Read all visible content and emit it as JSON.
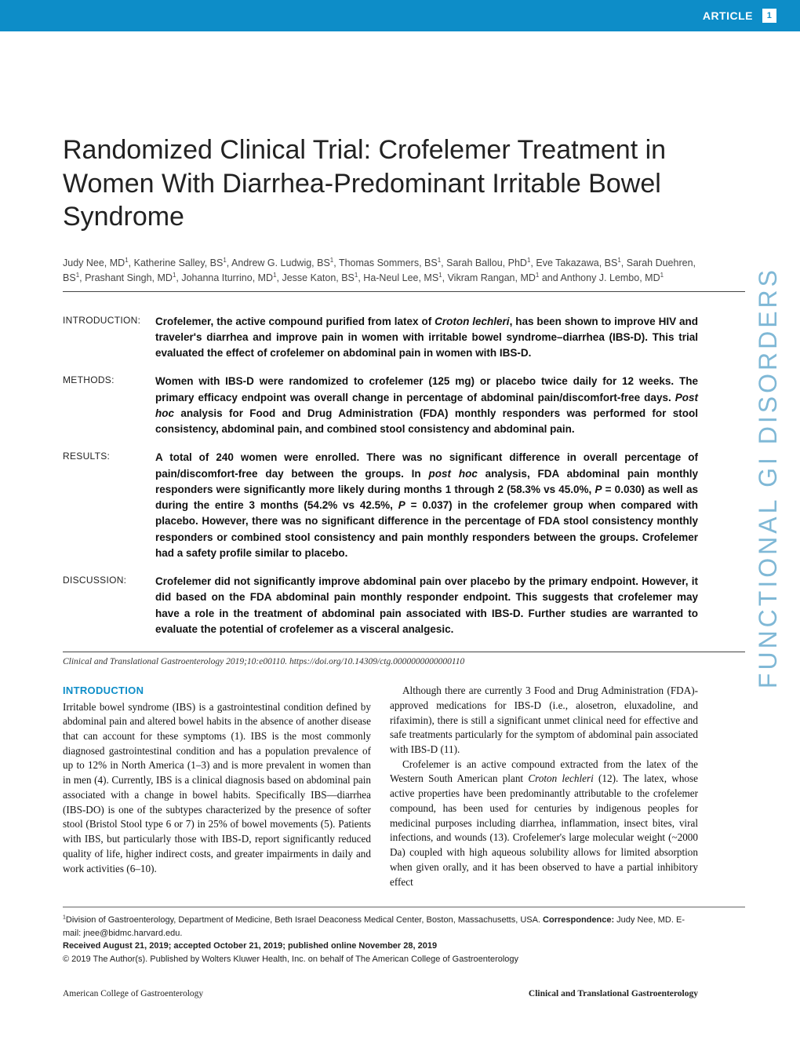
{
  "header": {
    "label": "ARTICLE",
    "page_number": "1",
    "bar_color": "#0d8dc8"
  },
  "side_label": "FUNCTIONAL GI DISORDERS",
  "title": "Randomized Clinical Trial: Crofelemer Treatment in Women With Diarrhea-Predominant Irritable Bowel Syndrome",
  "authors_html": "Judy Nee, MD<sup>1</sup>, Katherine Salley, BS<sup>1</sup>, Andrew G. Ludwig, BS<sup>1</sup>, Thomas Sommers, BS<sup>1</sup>, Sarah Ballou, PhD<sup>1</sup>, Eve Takazawa, BS<sup>1</sup>, Sarah Duehren, BS<sup>1</sup>, Prashant Singh, MD<sup>1</sup>, Johanna Iturrino, MD<sup>1</sup>, Jesse Katon, BS<sup>1</sup>, Ha-Neul Lee, MS<sup>1</sup>, Vikram Rangan, MD<sup>1</sup> and Anthony J. Lembo, MD<sup>1</sup>",
  "abstract": [
    {
      "label": "INTRODUCTION:",
      "text_html": "Crofelemer, the active compound purified from latex of <i>Croton lechleri</i>, has been shown to improve HIV and traveler's diarrhea and improve pain in women with irritable bowel syndrome–diarrhea (IBS-D). This trial evaluated the effect of crofelemer on abdominal pain in women with IBS-D."
    },
    {
      "label": "METHODS:",
      "text_html": "Women with IBS-D were randomized to crofelemer (125 mg) or placebo twice daily for 12 weeks. The primary efficacy endpoint was overall change in percentage of abdominal pain/discomfort-free days. <i>Post hoc</i> analysis for Food and Drug Administration (FDA) monthly responders was performed for stool consistency, abdominal pain, and combined stool consistency and abdominal pain."
    },
    {
      "label": "RESULTS:",
      "text_html": "A total of 240 women were enrolled. There was no significant difference in overall percentage of pain/discomfort-free day between the groups. In <i>post hoc</i> analysis, FDA abdominal pain monthly responders were significantly more likely during months 1 through 2 (58.3% vs 45.0%, <i>P</i> = 0.030) as well as during the entire 3 months (54.2% vs 42.5%, <i>P</i> = 0.037) in the crofelemer group when compared with placebo. However, there was no significant difference in the percentage of FDA stool consistency monthly responders or combined stool consistency and pain monthly responders between the groups. Crofelemer had a safety profile similar to placebo."
    },
    {
      "label": "DISCUSSION:",
      "text_html": "Crofelemer did not significantly improve abdominal pain over placebo by the primary endpoint. However, it did based on the FDA abdominal pain monthly responder endpoint. This suggests that crofelemer may have a role in the treatment of abdominal pain associated with IBS-D. Further studies are warranted to evaluate the potential of crofelemer as a visceral analgesic."
    }
  ],
  "citation": "Clinical and Translational Gastroenterology 2019;10:e00110. https://doi.org/10.14309/ctg.0000000000000110",
  "body": {
    "heading": "INTRODUCTION",
    "p1_html": "Irritable bowel syndrome (IBS) is a gastrointestinal condition defined by abdominal pain and altered bowel habits in the absence of another disease that can account for these symptoms (1). IBS is the most commonly diagnosed gastrointestinal condition and has a population prevalence of up to 12% in North America (1–3) and is more prevalent in women than in men (4). Currently, IBS is a clinical diagnosis based on abdominal pain associated with a change in bowel habits. Specifically IBS—diarrhea (IBS-DO) is one of the subtypes characterized by the presence of softer stool (Bristol Stool type 6 or 7) in 25% of bowel movements (5). Patients with IBS, but particularly those with IBS-D, report significantly reduced quality of life, higher indirect costs, and greater impairments in daily and work activities (6–10).",
    "p2_html": "Although there are currently 3 Food and Drug Administration (FDA)-approved medications for IBS-D (i.e., alosetron, eluxadoline, and rifaximin), there is still a significant unmet clinical need for effective and safe treatments particularly for the symptom of abdominal pain associated with IBS-D (11).",
    "p3_html": "Crofelemer is an active compound extracted from the latex of the Western South American plant <em>Croton lechleri</em> (12). The latex, whose active properties have been predominantly attributable to the crofelemer compound, has been used for centuries by indigenous peoples for medicinal purposes including diarrhea, inflammation, insect bites, viral infections, and wounds (13). Crofelemer's large molecular weight (~2000 Da) coupled with high aqueous solubility allows for limited absorption when given orally, and it has been observed to have a partial inhibitory effect"
  },
  "footer": {
    "affiliation_html": "<sup>1</sup>Division of Gastroenterology, Department of Medicine, Beth Israel Deaconess Medical Center, Boston, Massachusetts, USA. <span class=\"bold\">Correspondence:</span> Judy Nee, MD. E-mail: jnee@bidmc.harvard.edu.",
    "received": "Received August 21, 2019; accepted October 21, 2019; published online November 28, 2019",
    "copyright": "© 2019 The Author(s). Published by Wolters Kluwer Health, Inc. on behalf of The American College of Gastroenterology"
  },
  "running_footer": {
    "left": "American College of Gastroenterology",
    "right": "Clinical and Translational Gastroenterology"
  },
  "colors": {
    "primary": "#0d8dc8",
    "side_label": "#7fb8d6",
    "text": "#111111"
  }
}
